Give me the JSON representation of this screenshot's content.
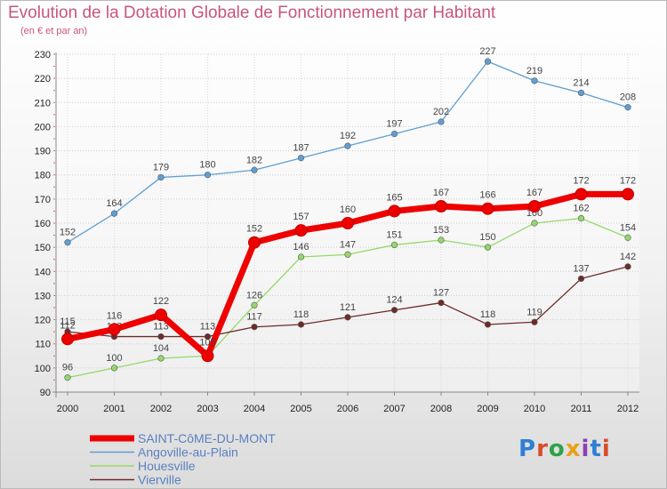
{
  "header": {
    "title": "Evolution de la Dotation Globale de Fonctionnement par Habitant",
    "subtitle": "(en € et par an)"
  },
  "logo": {
    "text": "Proxiti",
    "colors": [
      "#2f7fd3",
      "#d84b2a",
      "#2fa24a",
      "#e8a21b",
      "#8d3fb6",
      "#2f7fd3",
      "#d84b2a"
    ]
  },
  "chart_data": {
    "type": "line",
    "x": [
      "2000",
      "2001",
      "2002",
      "2003",
      "2004",
      "2005",
      "2006",
      "2007",
      "2008",
      "2009",
      "2010",
      "2011",
      "2012"
    ],
    "ylim": [
      90,
      230
    ],
    "yticks": [
      90,
      100,
      110,
      120,
      130,
      140,
      150,
      160,
      170,
      180,
      190,
      200,
      210,
      220,
      230
    ],
    "grid": true,
    "legend_position": "bottom-left",
    "series": [
      {
        "name": "Angoville-au-Plain",
        "color": "#5e9fd4",
        "values": [
          152,
          164,
          179,
          180,
          182,
          187,
          192,
          197,
          202,
          227,
          219,
          214,
          208
        ],
        "labels": [
          "152",
          "164",
          "179",
          "180",
          "182",
          "187",
          "192",
          "197",
          "202",
          "227",
          "219",
          "214",
          "208"
        ]
      },
      {
        "name": "Houesville",
        "color": "#94d86b",
        "values": [
          96,
          100,
          104,
          105,
          126,
          146,
          147,
          151,
          153,
          150,
          160,
          162,
          154
        ],
        "labels": [
          "96",
          "100",
          "104",
          "",
          "126",
          "146",
          "147",
          "151",
          "153",
          "150",
          "160",
          "162",
          "154"
        ]
      },
      {
        "name": "Vierville",
        "color": "#6e2a2a",
        "values": [
          115,
          113,
          113,
          113,
          117,
          118,
          121,
          124,
          127,
          118,
          119,
          137,
          142
        ],
        "labels": [
          "115",
          "113",
          "113",
          "113",
          "117",
          "118",
          "121",
          "124",
          "127",
          "118",
          "119",
          "137",
          "142"
        ]
      },
      {
        "name": "SAINT-CôME-DU-MONT",
        "color": "#ee0000",
        "values": [
          112,
          116,
          122,
          105,
          152,
          157,
          160,
          165,
          167,
          166,
          167,
          172,
          172
        ],
        "labels": [
          "112",
          "116",
          "122",
          "105",
          "152",
          "157",
          "160",
          "165",
          "167",
          "166",
          "167",
          "172",
          "172"
        ]
      }
    ]
  }
}
